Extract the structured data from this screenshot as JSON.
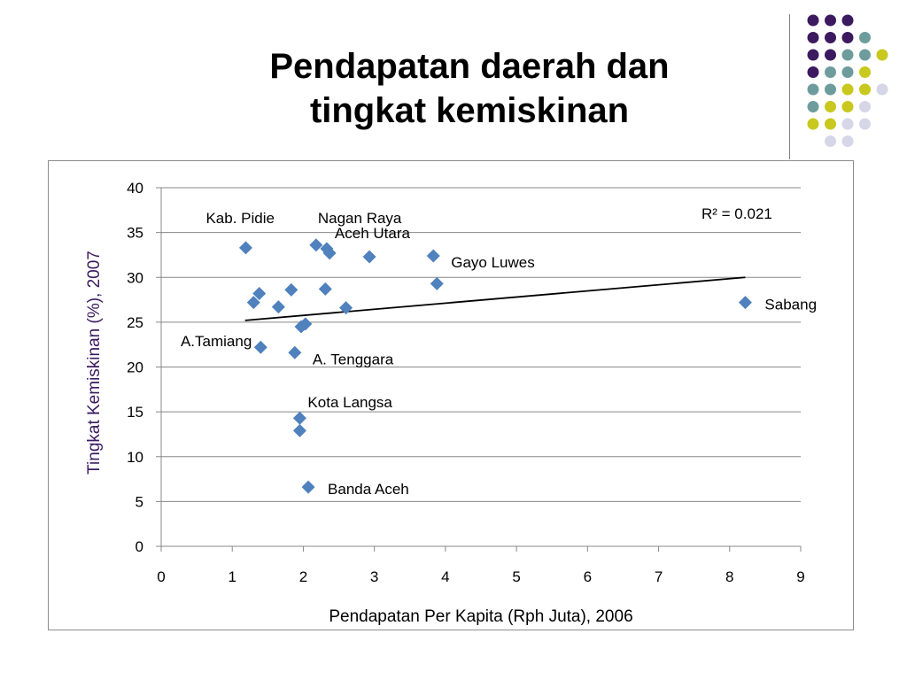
{
  "slide": {
    "title_lines": [
      "Pendapatan daerah dan",
      "tingkat kemiskinan"
    ]
  },
  "decor": {
    "dot_rows": [
      [
        "purple",
        "purple",
        "purple"
      ],
      [
        "purple",
        "purple",
        "purple",
        "teal"
      ],
      [
        "purple",
        "purple",
        "teal",
        "teal",
        "lime"
      ],
      [
        "purple",
        "teal",
        "teal",
        "lime"
      ],
      [
        "teal",
        "teal",
        "lime",
        "lime",
        "lavender"
      ],
      [
        "teal",
        "lime",
        "lime",
        "lavender"
      ],
      [
        "lime",
        "lime",
        "lavender",
        "lavender"
      ],
      [
        "lavender",
        "lavender"
      ]
    ],
    "dot_row_offsets": [
      0,
      0,
      0,
      0,
      0,
      0,
      0,
      1
    ],
    "palette": {
      "purple": "#3b1a5f",
      "teal": "#6e9c9c",
      "lime": "#c8c81e",
      "lavender": "#d6d6e8"
    }
  },
  "chart_data": {
    "type": "scatter",
    "xlabel": "Pendapatan Per Kapita (Rph Juta), 2006",
    "ylabel": "Tingkat Kemiskinan (%), 2007",
    "xlim": [
      0,
      9
    ],
    "ylim": [
      0,
      40
    ],
    "xticks": [
      0,
      1,
      2,
      3,
      4,
      5,
      6,
      7,
      8,
      9
    ],
    "yticks": [
      0,
      5,
      10,
      15,
      20,
      25,
      30,
      35,
      40
    ],
    "grid": "horizontal",
    "marker_color": "#4f81bd",
    "ylabel_color": "#3b1a5f",
    "trendline": {
      "x": [
        1.18,
        8.22
      ],
      "y": [
        25.2,
        30.0
      ],
      "r2_label": "R² = 0.021"
    },
    "points": [
      {
        "x": 1.19,
        "y": 33.3,
        "label": "Kab. Pidie",
        "label_pos": "above-left"
      },
      {
        "x": 2.18,
        "y": 33.6,
        "label": "Nagan Raya",
        "label_pos": "above"
      },
      {
        "x": 2.33,
        "y": 33.2,
        "label": "Aceh Utara",
        "label_pos": "above-right"
      },
      {
        "x": 2.37,
        "y": 32.7,
        "label": "",
        "label_pos": ""
      },
      {
        "x": 2.93,
        "y": 32.3,
        "label": "",
        "label_pos": ""
      },
      {
        "x": 3.83,
        "y": 32.4,
        "label": "Gayo Luwes",
        "label_pos": "right-below"
      },
      {
        "x": 3.88,
        "y": 29.3,
        "label": "",
        "label_pos": ""
      },
      {
        "x": 8.22,
        "y": 27.2,
        "label": "Sabang",
        "label_pos": "right"
      },
      {
        "x": 1.38,
        "y": 28.2,
        "label": "",
        "label_pos": ""
      },
      {
        "x": 1.3,
        "y": 27.2,
        "label": "",
        "label_pos": ""
      },
      {
        "x": 1.65,
        "y": 26.7,
        "label": "",
        "label_pos": ""
      },
      {
        "x": 1.83,
        "y": 28.6,
        "label": "",
        "label_pos": ""
      },
      {
        "x": 2.31,
        "y": 28.7,
        "label": "",
        "label_pos": ""
      },
      {
        "x": 2.6,
        "y": 26.6,
        "label": "",
        "label_pos": ""
      },
      {
        "x": 1.97,
        "y": 24.5,
        "label": "",
        "label_pos": ""
      },
      {
        "x": 2.03,
        "y": 24.8,
        "label": "",
        "label_pos": ""
      },
      {
        "x": 1.4,
        "y": 22.2,
        "label": "A.Tamiang",
        "label_pos": "left-above"
      },
      {
        "x": 1.88,
        "y": 21.6,
        "label": "A. Tenggara",
        "label_pos": "right-below"
      },
      {
        "x": 1.95,
        "y": 14.3,
        "label": "Kota Langsa",
        "label_pos": "above-right"
      },
      {
        "x": 1.95,
        "y": 12.9,
        "label": "",
        "label_pos": ""
      },
      {
        "x": 2.07,
        "y": 6.6,
        "label": "Banda Aceh",
        "label_pos": "right"
      }
    ]
  }
}
